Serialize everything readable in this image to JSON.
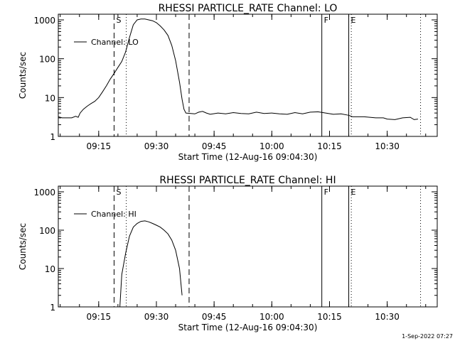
{
  "chart_data": [
    {
      "type": "line",
      "title": "RHESSI PARTICLE_RATE Channel: LO",
      "xlabel": "Start Time (12-Aug-16 09:04:30)",
      "ylabel": "Counts/sec",
      "y_scale": "log",
      "xlim": [
        "09:04:30",
        "10:43:00"
      ],
      "ylim": [
        1,
        1000
      ],
      "x_ticks": [
        "09:15",
        "09:30",
        "09:45",
        "10:00",
        "10:15",
        "10:30"
      ],
      "y_ticks": [
        "1",
        "10",
        "100",
        "1000"
      ],
      "legend": {
        "entries": [
          "Channel: LO"
        ],
        "placement": "top-left"
      },
      "grid": false,
      "markers": [
        {
          "label": "S",
          "time": "09:19:00",
          "style": "dashed"
        },
        {
          "label": "",
          "time": "09:22:10",
          "style": "dotted"
        },
        {
          "label": "",
          "time": "09:38:30",
          "style": "dashed"
        },
        {
          "label": "F",
          "time": "10:13:00",
          "style": "solid"
        },
        {
          "label": "E",
          "time": "10:20:00",
          "style": "solid"
        },
        {
          "label": "",
          "time": "10:20:40",
          "style": "dotted"
        },
        {
          "label": "",
          "time": "10:38:40",
          "style": "dotted"
        }
      ],
      "series": [
        {
          "name": "Channel: LO",
          "points": [
            [
              "09:04:30",
              3.2
            ],
            [
              "09:05:30",
              3.0
            ],
            [
              "09:08:00",
              3.0
            ],
            [
              "09:09:00",
              3.3
            ],
            [
              "09:09:40",
              3.1
            ],
            [
              "09:10:10",
              4.0
            ],
            [
              "09:11:00",
              5.0
            ],
            [
              "09:12:00",
              6.0
            ],
            [
              "09:13:00",
              7.0
            ],
            [
              "09:14:00",
              8.0
            ],
            [
              "09:15:00",
              10.0
            ],
            [
              "09:16:00",
              14.0
            ],
            [
              "09:17:00",
              20.0
            ],
            [
              "09:18:00",
              30.0
            ],
            [
              "09:19:00",
              42.0
            ],
            [
              "09:20:00",
              60.0
            ],
            [
              "09:21:00",
              85.0
            ],
            [
              "09:22:00",
              150.0
            ],
            [
              "09:23:00",
              350.0
            ],
            [
              "09:24:00",
              750.0
            ],
            [
              "09:25:00",
              1000.0
            ],
            [
              "09:26:00",
              1050.0
            ],
            [
              "09:27:00",
              1050.0
            ],
            [
              "09:28:00",
              1000.0
            ],
            [
              "09:29:00",
              950.0
            ],
            [
              "09:30:00",
              850.0
            ],
            [
              "09:31:00",
              700.0
            ],
            [
              "09:32:00",
              550.0
            ],
            [
              "09:33:00",
              400.0
            ],
            [
              "09:34:00",
              220.0
            ],
            [
              "09:35:00",
              90.0
            ],
            [
              "09:36:00",
              25.0
            ],
            [
              "09:36:40",
              9.0
            ],
            [
              "09:37:10",
              5.0
            ],
            [
              "09:37:40",
              4.0
            ],
            [
              "09:40:00",
              3.8
            ],
            [
              "09:41:00",
              4.2
            ],
            [
              "09:42:00",
              4.4
            ],
            [
              "09:43:00",
              4.0
            ],
            [
              "09:44:00",
              3.7
            ],
            [
              "09:46:00",
              4.0
            ],
            [
              "09:48:00",
              3.8
            ],
            [
              "09:50:00",
              4.1
            ],
            [
              "09:52:00",
              3.9
            ],
            [
              "09:54:00",
              3.8
            ],
            [
              "09:56:00",
              4.2
            ],
            [
              "09:58:00",
              3.9
            ],
            [
              "10:00:00",
              4.0
            ],
            [
              "10:02:00",
              3.8
            ],
            [
              "10:04:00",
              3.7
            ],
            [
              "10:06:00",
              4.1
            ],
            [
              "10:08:00",
              3.8
            ],
            [
              "10:10:00",
              4.2
            ],
            [
              "10:12:00",
              4.3
            ],
            [
              "10:14:00",
              4.0
            ],
            [
              "10:16:00",
              3.7
            ],
            [
              "10:18:00",
              3.8
            ],
            [
              "10:20:00",
              3.5
            ],
            [
              "10:21:00",
              3.2
            ],
            [
              "10:24:00",
              3.2
            ],
            [
              "10:27:00",
              3.0
            ],
            [
              "10:29:00",
              3.0
            ],
            [
              "10:30:00",
              2.8
            ],
            [
              "10:32:00",
              2.7
            ],
            [
              "10:34:00",
              3.0
            ],
            [
              "10:36:00",
              3.1
            ],
            [
              "10:37:00",
              2.7
            ],
            [
              "10:38:00",
              2.8
            ]
          ]
        }
      ]
    },
    {
      "type": "line",
      "title": "RHESSI PARTICLE_RATE Channel: HI",
      "xlabel": "Start Time (12-Aug-16 09:04:30)",
      "ylabel": "Counts/sec",
      "y_scale": "log",
      "xlim": [
        "09:04:30",
        "10:43:00"
      ],
      "ylim": [
        1,
        1000
      ],
      "x_ticks": [
        "09:15",
        "09:30",
        "09:45",
        "10:00",
        "10:15",
        "10:30"
      ],
      "y_ticks": [
        "1",
        "10",
        "100",
        "1000"
      ],
      "legend": {
        "entries": [
          "Channel: HI"
        ],
        "placement": "top-left"
      },
      "grid": false,
      "markers": [
        {
          "label": "S",
          "time": "09:19:00",
          "style": "dashed"
        },
        {
          "label": "",
          "time": "09:22:10",
          "style": "dotted"
        },
        {
          "label": "",
          "time": "09:38:30",
          "style": "dashed"
        },
        {
          "label": "F",
          "time": "10:13:00",
          "style": "solid"
        },
        {
          "label": "E",
          "time": "10:20:00",
          "style": "solid"
        },
        {
          "label": "",
          "time": "10:20:40",
          "style": "dotted"
        },
        {
          "label": "",
          "time": "10:38:40",
          "style": "dotted"
        }
      ],
      "series": [
        {
          "name": "Channel: HI",
          "points": [
            [
              "09:20:30",
              1.0
            ],
            [
              "09:21:00",
              7.0
            ],
            [
              "09:22:00",
              25.0
            ],
            [
              "09:23:00",
              70.0
            ],
            [
              "09:24:00",
              120.0
            ],
            [
              "09:25:00",
              150.0
            ],
            [
              "09:26:00",
              170.0
            ],
            [
              "09:27:00",
              175.0
            ],
            [
              "09:28:00",
              165.0
            ],
            [
              "09:29:00",
              150.0
            ],
            [
              "09:30:00",
              135.0
            ],
            [
              "09:31:00",
              120.0
            ],
            [
              "09:32:00",
              100.0
            ],
            [
              "09:33:00",
              80.0
            ],
            [
              "09:34:00",
              55.0
            ],
            [
              "09:35:00",
              30.0
            ],
            [
              "09:36:00",
              10.0
            ],
            [
              "09:36:40",
              2.0
            ]
          ]
        }
      ]
    }
  ],
  "footer": {
    "timestamp": "1-Sep-2022 07:27"
  }
}
